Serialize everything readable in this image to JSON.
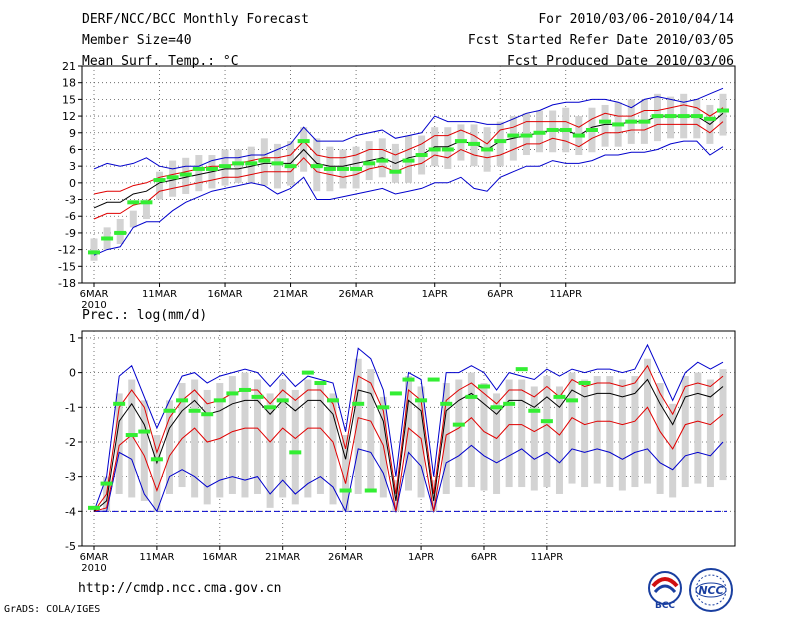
{
  "header": {
    "title": "DERF/NCC/BCC Monthly Forecast",
    "member_size": "Member Size=40",
    "variable": "Mean Surf. Temp.: °C",
    "period": "For 2010/03/06-2010/04/14",
    "fcst_started": "Fcst Started Refer Date 2010/03/05",
    "fcst_produced": "Fcst Produced Date 2010/03/06"
  },
  "prec_title": "Prec.: log(mm/d)",
  "footer": {
    "url": "http://cmdp.ncc.cma.gov.cn",
    "grads": "GrADS: COLA/IGES",
    "logo_bcc": "BCC",
    "logo_ncc": "NCC"
  },
  "colors": {
    "max_min": "#0000cc",
    "spread": "#e00000",
    "mean": "#000000",
    "obs": "#33ee33",
    "box": "#d3d3d3",
    "grid": "#555555",
    "floor": "#0000cc"
  },
  "chart_data": [
    {
      "type": "line",
      "title": "Mean Surf. Temp.: °C",
      "x_start": "2010-03-06",
      "x_ticks": [
        "6MAR",
        "11MAR",
        "16MAR",
        "21MAR",
        "26MAR",
        "1APR",
        "6APR",
        "11APR"
      ],
      "x_tick_days": [
        0,
        5,
        10,
        15,
        20,
        26,
        31,
        36
      ],
      "year_label": "2010",
      "y_ticks": [
        21,
        18,
        15,
        12,
        9,
        6,
        3,
        0,
        -3,
        -6,
        -9,
        -12,
        -15,
        -18
      ],
      "ylim": [
        -18,
        21
      ],
      "series": [
        {
          "name": "max",
          "values": [
            2.5,
            3.5,
            3,
            3.5,
            4.5,
            3,
            2.5,
            3,
            3,
            4,
            4.5,
            4.5,
            5,
            5,
            6,
            7,
            10,
            7.5,
            7.5,
            7.5,
            8.5,
            9,
            9.5,
            8,
            8.5,
            9,
            12,
            11,
            11,
            11,
            10.5,
            10.5,
            11.5,
            12.5,
            13,
            14,
            14.5,
            14.5,
            15,
            15,
            14.5,
            13.5,
            15,
            15.5,
            15,
            14.5,
            15,
            16,
            17
          ]
        },
        {
          "name": "upper",
          "values": [
            -2,
            -1.5,
            -1.5,
            -0.5,
            0,
            1,
            1.5,
            2,
            2.5,
            3,
            3,
            3.5,
            4,
            4.5,
            4.5,
            5,
            7.5,
            5,
            4.5,
            4.5,
            5,
            6,
            6,
            5,
            6,
            7,
            8.5,
            8.5,
            9.5,
            8.5,
            7,
            9.5,
            10,
            11,
            11,
            11,
            11,
            10,
            11.5,
            12.5,
            12,
            12,
            13,
            13,
            13.5,
            14,
            13.5,
            12,
            13.5
          ]
        },
        {
          "name": "mean",
          "values": [
            -4.5,
            -3.5,
            -3.5,
            -2,
            -1.5,
            0,
            0.5,
            1,
            1.5,
            2,
            2.5,
            2.5,
            3,
            3.5,
            3.5,
            3.5,
            6,
            3.5,
            3,
            3,
            3.5,
            4,
            4.5,
            3.5,
            4.5,
            5,
            6.5,
            6.5,
            7.5,
            7,
            6,
            7.5,
            8,
            8.5,
            9,
            9.5,
            9.5,
            8.5,
            10,
            10.5,
            10.5,
            11,
            11,
            12,
            12,
            12,
            12,
            10.5,
            12.5
          ]
        },
        {
          "name": "lower",
          "values": [
            -6.5,
            -5.5,
            -5.5,
            -4,
            -3.5,
            -1.5,
            -1,
            -0.5,
            0,
            0.5,
            1,
            1,
            1.5,
            2,
            2,
            2,
            4.5,
            2,
            1.5,
            1,
            1.5,
            2.5,
            3,
            2,
            3,
            3.5,
            5,
            4.5,
            6,
            5,
            4.5,
            5,
            6,
            7,
            7,
            8,
            7.5,
            6.5,
            8,
            9,
            9,
            9.5,
            9.5,
            10.5,
            10.5,
            10.5,
            10.5,
            9,
            11
          ]
        },
        {
          "name": "min",
          "values": [
            -13,
            -12,
            -11.5,
            -8,
            -7,
            -7,
            -5,
            -3.5,
            -2.5,
            -1.5,
            -1,
            -0.5,
            0,
            -0.5,
            -2,
            -1,
            1,
            -3,
            -3,
            -2.5,
            -2,
            -1.5,
            -1,
            -2,
            -1.5,
            -1,
            0,
            0,
            1,
            -1,
            -1.5,
            1,
            2,
            3,
            3,
            4,
            3.5,
            3.5,
            4,
            5,
            5,
            5.5,
            5.5,
            6,
            7,
            7.5,
            7.5,
            5,
            6.5
          ]
        },
        {
          "name": "observed",
          "values": [
            -12.5,
            -10,
            -9,
            -3.5,
            -3.5,
            0.5,
            1,
            1.5,
            2.5,
            2.5,
            3,
            3.5,
            3.5,
            4,
            3.5,
            3,
            7.5,
            3,
            2.5,
            2.5,
            2.5,
            3.5,
            4,
            2,
            4,
            5,
            6,
            6,
            7.5,
            7,
            6,
            7.5,
            8.5,
            8.5,
            9,
            9.5,
            9.5,
            8.5,
            9.5,
            11,
            10.5,
            11,
            11,
            12,
            12,
            12,
            12,
            11.5,
            13
          ]
        },
        {
          "name": "box_top",
          "values": [
            -10,
            -8,
            -6.5,
            -5,
            -3,
            2,
            4,
            4.5,
            5,
            5,
            6,
            6,
            6.5,
            8,
            7,
            7.5,
            10,
            8,
            6.5,
            6,
            6.5,
            7.5,
            8,
            7,
            8.5,
            8.5,
            10,
            10,
            10.5,
            10.5,
            10,
            11,
            12,
            12.5,
            13,
            13,
            13.5,
            12,
            13.5,
            14,
            14.5,
            15,
            15,
            16,
            15.5,
            16,
            15,
            14,
            16
          ]
        },
        {
          "name": "box_bottom",
          "values": [
            -14,
            -12,
            -11,
            -8,
            -6.5,
            -3,
            -2.5,
            -2,
            -1.5,
            -1,
            -0.5,
            0,
            0,
            -0.5,
            -1,
            -0.5,
            2,
            -1.5,
            -1.5,
            -1,
            -1,
            0.5,
            1,
            0,
            0,
            1.5,
            3,
            2.5,
            4,
            3,
            2,
            3,
            4,
            5,
            5.5,
            5.5,
            5.5,
            5,
            5.5,
            6.5,
            6.5,
            7,
            7,
            7.5,
            8,
            8,
            8,
            7,
            8.5
          ]
        }
      ]
    },
    {
      "type": "line",
      "title": "Prec.: log(mm/d)",
      "x_start": "2010-03-06",
      "x_ticks": [
        "6MAR",
        "11MAR",
        "16MAR",
        "21MAR",
        "26MAR",
        "1APR",
        "6APR",
        "11APR"
      ],
      "x_tick_days": [
        0,
        5,
        10,
        15,
        20,
        26,
        31,
        36
      ],
      "year_label": "2010",
      "y_ticks": [
        1,
        0,
        -1,
        -2,
        -3,
        -4,
        -5
      ],
      "ylim": [
        -5,
        1.2
      ],
      "floor_value": -4,
      "series": [
        {
          "name": "max",
          "values": [
            -4,
            -3,
            -0.1,
            0.2,
            -0.7,
            -1.6,
            -0.8,
            -0.1,
            0,
            -0.3,
            -0.1,
            0,
            0.1,
            0,
            -0.4,
            0,
            -0.4,
            -0.1,
            -0.2,
            -0.3,
            -1.7,
            0.7,
            0.4,
            -0.5,
            -3,
            0,
            -0.2,
            -3,
            0,
            0,
            0.2,
            0,
            -0.5,
            0,
            -0.1,
            -0.2,
            0.1,
            -0.1,
            0.1,
            0,
            0.1,
            0.1,
            0,
            0.1,
            0.8,
            0,
            -0.8,
            0,
            0.3,
            0.1,
            0.3
          ]
        },
        {
          "name": "upper",
          "values": [
            -4,
            -3.5,
            -1,
            -0.5,
            -1,
            -2.3,
            -1.3,
            -0.8,
            -0.5,
            -0.9,
            -0.8,
            -0.6,
            -0.5,
            -0.5,
            -0.9,
            -0.5,
            -0.8,
            -0.5,
            -0.5,
            -0.9,
            -2.2,
            -0.1,
            -0.3,
            -1.1,
            -3.5,
            -0.5,
            -0.8,
            -3.5,
            -0.8,
            -0.5,
            -0.3,
            -0.6,
            -0.9,
            -0.5,
            -0.5,
            -0.7,
            -0.4,
            -0.7,
            -0.2,
            -0.4,
            -0.3,
            -0.3,
            -0.4,
            -0.3,
            0.2,
            -0.6,
            -1.2,
            -0.4,
            -0.3,
            -0.4,
            -0.1
          ]
        },
        {
          "name": "mean",
          "values": [
            -4,
            -3.7,
            -1.4,
            -0.9,
            -1.5,
            -2.6,
            -1.6,
            -1.1,
            -0.8,
            -1.2,
            -1.1,
            -0.9,
            -0.8,
            -0.8,
            -1.2,
            -0.8,
            -1.1,
            -0.8,
            -0.8,
            -1.2,
            -2.5,
            -0.5,
            -0.6,
            -1.4,
            -3.7,
            -0.8,
            -1.1,
            -3.7,
            -1.1,
            -0.8,
            -0.6,
            -0.9,
            -1.2,
            -0.8,
            -0.8,
            -1,
            -0.7,
            -1,
            -0.5,
            -0.7,
            -0.6,
            -0.6,
            -0.7,
            -0.6,
            -0.2,
            -0.9,
            -1.5,
            -0.7,
            -0.6,
            -0.7,
            -0.4
          ]
        },
        {
          "name": "lower",
          "values": [
            -4,
            -3.9,
            -2.1,
            -1.8,
            -2.4,
            -3.4,
            -2.4,
            -1.9,
            -1.6,
            -2,
            -1.9,
            -1.7,
            -1.6,
            -1.6,
            -2,
            -1.6,
            -1.9,
            -1.6,
            -1.6,
            -2,
            -3.2,
            -1.3,
            -1.4,
            -2.1,
            -4,
            -1.6,
            -1.9,
            -4,
            -1.8,
            -1.6,
            -1.3,
            -1.7,
            -1.9,
            -1.5,
            -1.5,
            -1.7,
            -1.5,
            -1.8,
            -1.3,
            -1.5,
            -1.4,
            -1.4,
            -1.5,
            -1.4,
            -1,
            -1.7,
            -2.2,
            -1.5,
            -1.4,
            -1.5,
            -1.2
          ]
        },
        {
          "name": "min",
          "values": [
            -4,
            -4,
            -2.3,
            -2.5,
            -3.5,
            -4,
            -3,
            -2.8,
            -3,
            -3.3,
            -3.1,
            -3,
            -3.1,
            -3,
            -3.5,
            -3.1,
            -3.5,
            -3.2,
            -3,
            -3.3,
            -4,
            -2.2,
            -2.3,
            -2.9,
            -4,
            -2.3,
            -2.7,
            -4,
            -2.6,
            -2.4,
            -2.1,
            -2.4,
            -2.6,
            -2.4,
            -2.2,
            -2.5,
            -2.3,
            -2.6,
            -2.2,
            -2.3,
            -2.2,
            -2.3,
            -2.5,
            -2.3,
            -2.2,
            -2.6,
            -2.8,
            -2.4,
            -2.3,
            -2.4,
            -2
          ]
        },
        {
          "name": "observed",
          "values": [
            -3.9,
            -3.2,
            -0.9,
            -1.8,
            -1.7,
            -2.5,
            -1.1,
            -0.8,
            -1.1,
            -1.2,
            -0.8,
            -0.6,
            -0.5,
            -0.7,
            -1,
            -0.8,
            -2.3,
            0,
            -0.3,
            -0.8,
            -3.4,
            -0.9,
            -3.4,
            -1,
            -0.6,
            -0.2,
            -0.8,
            -0.2,
            -0.9,
            -1.5,
            -0.7,
            -0.4,
            -1,
            -0.9,
            0.1,
            -1.1,
            -1.4,
            -0.7,
            -0.8,
            -0.3
          ]
        },
        {
          "name": "box_top",
          "values": [
            -4,
            -3,
            -0.6,
            -0.2,
            -0.8,
            -1.8,
            -0.8,
            -0.3,
            -0.2,
            -0.5,
            -0.3,
            -0.1,
            0,
            -0.2,
            -0.6,
            -0.2,
            -0.5,
            -0.2,
            -0.3,
            -0.6,
            -1.8,
            0.4,
            0.1,
            -0.7,
            -3.1,
            -0.1,
            -0.4,
            -3.1,
            -0.3,
            -0.2,
            0,
            -0.3,
            -0.6,
            -0.2,
            -0.2,
            -0.4,
            -0.1,
            -0.4,
            0,
            -0.2,
            -0.1,
            -0.1,
            -0.2,
            -0.1,
            0.4,
            -0.3,
            -0.9,
            -0.1,
            0,
            -0.2,
            0.1
          ]
        },
        {
          "name": "box_bottom",
          "values": [
            -4,
            -4,
            -3.5,
            -3.6,
            -3.7,
            -4,
            -3.5,
            -3.3,
            -3.6,
            -3.8,
            -3.6,
            -3.5,
            -3.6,
            -3.5,
            -3.9,
            -3.6,
            -3.8,
            -3.6,
            -3.5,
            -3.8,
            -4,
            -3.5,
            -3.4,
            -3.6,
            -4,
            -3.4,
            -3.6,
            -4,
            -3.5,
            -3.3,
            -3.3,
            -3.4,
            -3.5,
            -3.3,
            -3.3,
            -3.4,
            -3.3,
            -3.5,
            -3.2,
            -3.3,
            -3.2,
            -3.3,
            -3.4,
            -3.3,
            -3.2,
            -3.5,
            -3.6,
            -3.3,
            -3.2,
            -3.3,
            -3.1
          ]
        }
      ]
    }
  ]
}
